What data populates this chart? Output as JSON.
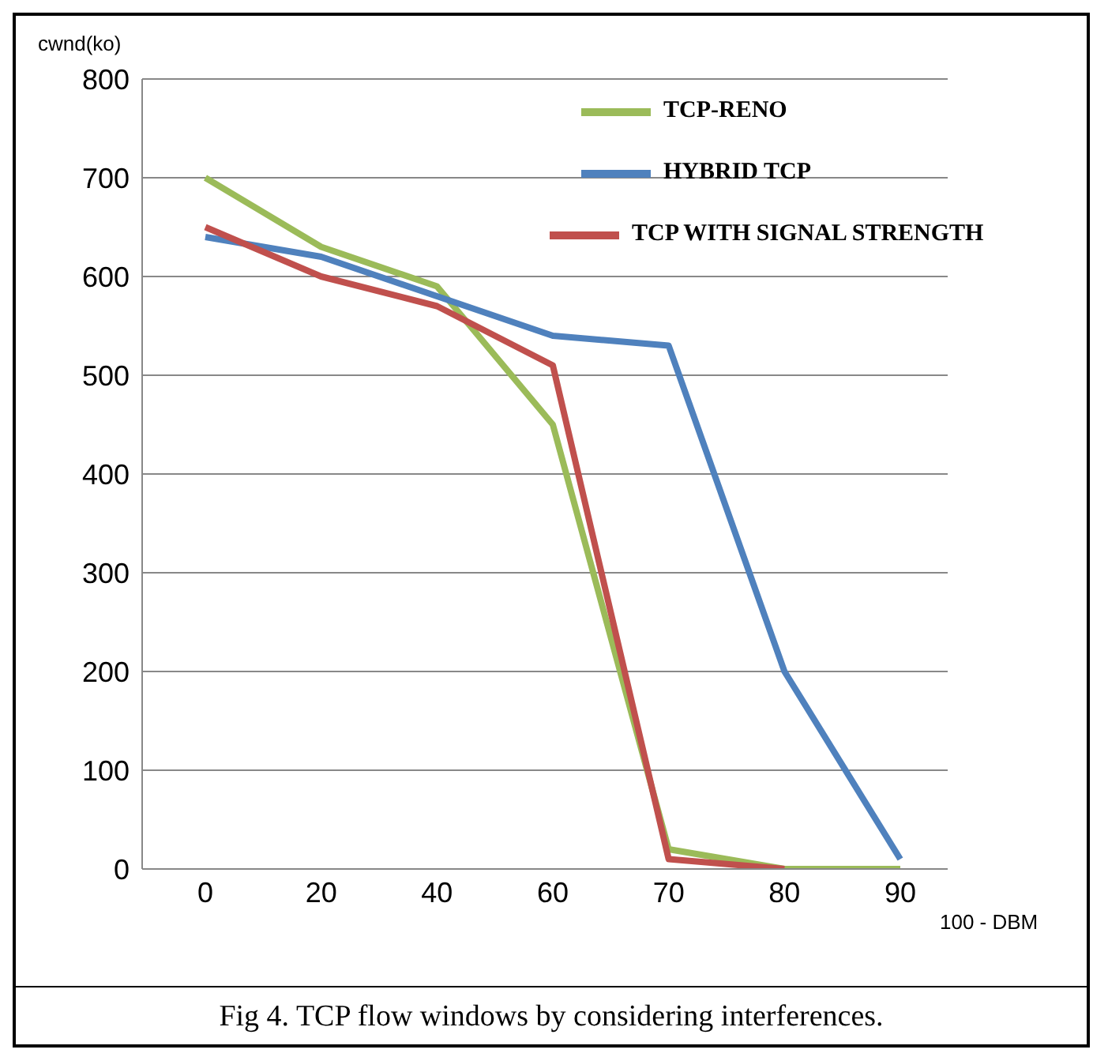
{
  "chart_data": {
    "type": "line",
    "ylabel": "cwnd(ko)",
    "xlabel": "100 - DBM",
    "categories": [
      "0",
      "20",
      "40",
      "60",
      "70",
      "80",
      "90"
    ],
    "series": [
      {
        "name": "TCP-RENO",
        "color": "#9bbb59",
        "values": [
          700,
          630,
          590,
          450,
          20,
          0,
          0
        ]
      },
      {
        "name": "HYBRID TCP",
        "color": "#4f81bd",
        "values": [
          640,
          620,
          580,
          540,
          530,
          200,
          10
        ]
      },
      {
        "name": "TCP WITH SIGNAL STRENGTH",
        "color": "#c0504d",
        "values": [
          650,
          600,
          570,
          510,
          10,
          0,
          null
        ]
      }
    ],
    "ylim": [
      0,
      800
    ],
    "yticks": [
      0,
      100,
      200,
      300,
      400,
      500,
      600,
      700,
      800
    ],
    "grid": "y",
    "legend": "top right",
    "marker": "none",
    "line_style": "solid",
    "annotations": [
      "Fig 4. TCP flow windows by considering interferences."
    ]
  }
}
